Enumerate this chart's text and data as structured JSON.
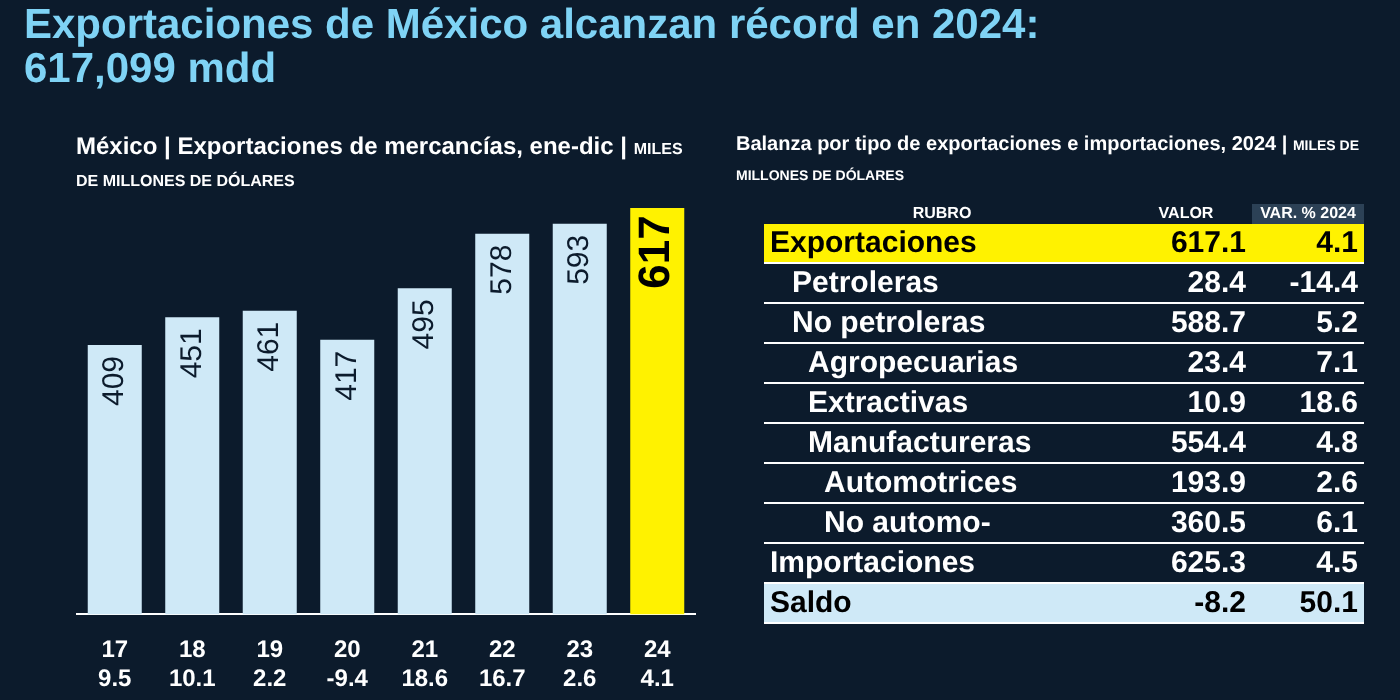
{
  "chart_data": [
    {
      "type": "bar",
      "title": "Exportaciones de México alcanzan récord en 2024: 617,099 mdd",
      "subtitle": "México | Exportaciones de mercancías, ene-dic | MILES DE MILLONES DE DÓLARES",
      "categories": [
        "17\n9.5",
        "18\n10.1",
        "19\n2.2",
        "20\n-9.4",
        "21\n18.6",
        "22\n16.7",
        "23\n2.6",
        "24\n4.1"
      ],
      "values": [
        409,
        451,
        461,
        417,
        495,
        578,
        593,
        617
      ],
      "colors": [
        "#cfe9f7",
        "#cfe9f7",
        "#cfe9f7",
        "#cfe9f7",
        "#cfe9f7",
        "#cfe9f7",
        "#cfe9f7",
        "#fff200"
      ],
      "data_labels": true,
      "tick_labels": "x"
    },
    {
      "type": "other",
      "title": "Balanza por tipo de exportaciones e importaciones, 2024 | MILES DE MILLONES DE DÓLARES",
      "annotations": [
        "RUBRO",
        "VALOR",
        "VAR. % 2024",
        "Exportaciones",
        "617.1",
        "4.1",
        "Petroleras",
        "28.4",
        "-14.4",
        "No petroleras",
        "588.7",
        "5.2",
        "Agropecuarias",
        "23.4",
        "7.1",
        "Extractivas",
        "10.9",
        "18.6",
        "Manufactureras",
        "554.4",
        "4.8",
        "Automotrices",
        "193.9",
        "2.6",
        "No automo-",
        "360.5",
        "6.1",
        "Importaciones",
        "625.3",
        "4.5",
        "Saldo",
        "-8.2",
        "50.1"
      ]
    }
  ]
}
